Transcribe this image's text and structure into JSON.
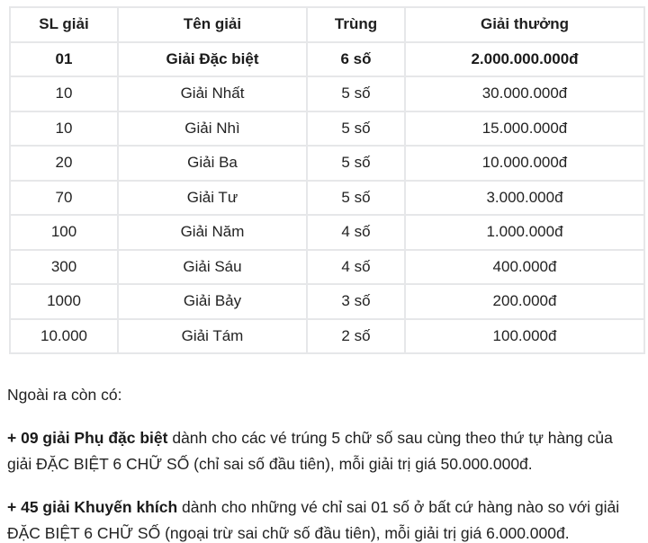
{
  "table": {
    "headers": [
      "SL giải",
      "Tên giải",
      "Trùng",
      "Giải thưởng"
    ],
    "rows": [
      {
        "sl": "01",
        "ten": "Giải Đặc biệt",
        "trung": "6 số",
        "thuong": "2.000.000.000đ",
        "bold": true
      },
      {
        "sl": "10",
        "ten": "Giải Nhất",
        "trung": "5 số",
        "thuong": "30.000.000đ",
        "bold": false
      },
      {
        "sl": "10",
        "ten": "Giải Nhì",
        "trung": "5 số",
        "thuong": "15.000.000đ",
        "bold": false
      },
      {
        "sl": "20",
        "ten": "Giải Ba",
        "trung": "5 số",
        "thuong": "10.000.000đ",
        "bold": false
      },
      {
        "sl": "70",
        "ten": "Giải Tư",
        "trung": "5 số",
        "thuong": "3.000.000đ",
        "bold": false
      },
      {
        "sl": "100",
        "ten": "Giải Năm",
        "trung": "4 số",
        "thuong": "1.000.000đ",
        "bold": false
      },
      {
        "sl": "300",
        "ten": "Giải Sáu",
        "trung": "4 số",
        "thuong": "400.000đ",
        "bold": false
      },
      {
        "sl": "1000",
        "ten": "Giải Bảy",
        "trung": "3 số",
        "thuong": "200.000đ",
        "bold": false
      },
      {
        "sl": "10.000",
        "ten": "Giải Tám",
        "trung": "2 số",
        "thuong": "100.000đ",
        "bold": false
      }
    ]
  },
  "notes": {
    "intro": "Ngoài ra còn có:",
    "items": [
      {
        "bold": "+ 09 giải Phụ đặc biệt",
        "text": " dành cho các vé trúng 5 chữ số sau cùng theo thứ tự hàng của giải ĐẶC BIỆT 6 CHỮ SỐ (chỉ sai số đầu tiên), mỗi giải trị giá 50.000.000đ."
      },
      {
        "bold": "+ 45 giải Khuyến khích",
        "text": " dành cho những vé chỉ sai 01 số ở bất cứ hàng nào so với giải ĐẶC BIỆT 6 CHỮ SỐ (ngoại trừ sai chữ số đầu tiên), mỗi giải trị giá 6.000.000đ."
      }
    ]
  },
  "colors": {
    "border": "#e6e7e9",
    "text": "#1f1f1f"
  }
}
